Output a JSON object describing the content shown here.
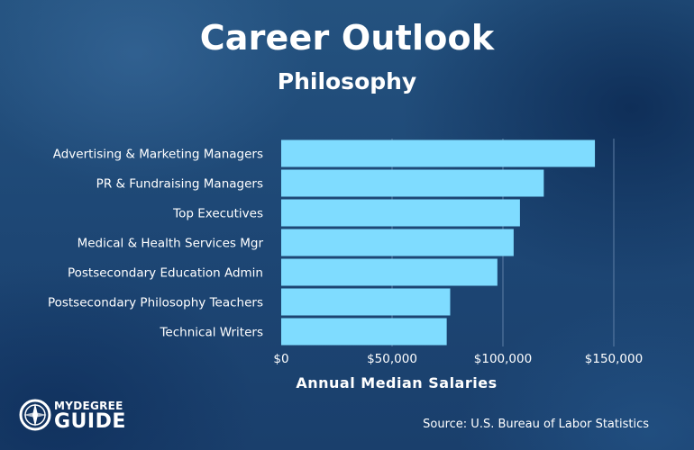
{
  "title": "Career Outlook",
  "subtitle": "Philosophy",
  "source": "Source: U.S. Bureau of Labor Statistics",
  "logo": {
    "line1": "MYDEGREE",
    "line2": "GUIDE"
  },
  "colors": {
    "bar": "#7fdcff",
    "text": "#ffffff",
    "grid": "#5f7fa6"
  },
  "chart_data": {
    "type": "bar",
    "orientation": "horizontal",
    "categories": [
      "Advertising & Marketing Managers",
      "PR & Fundraising Managers",
      "Top Executives",
      "Medical & Health Services Mgr",
      "Postsecondary Education Admin",
      "Postsecondary Philosophy Teachers",
      "Technical Writers"
    ],
    "values": [
      141490,
      118430,
      107680,
      104830,
      97500,
      76210,
      74650
    ],
    "xlabel": "Annual Median Salaries",
    "xlim": [
      0,
      150000
    ],
    "xticks": [
      0,
      50000,
      100000,
      150000
    ],
    "xtick_labels": [
      "$0",
      "$50,000",
      "$100,000",
      "$150,000"
    ],
    "grid": true
  }
}
